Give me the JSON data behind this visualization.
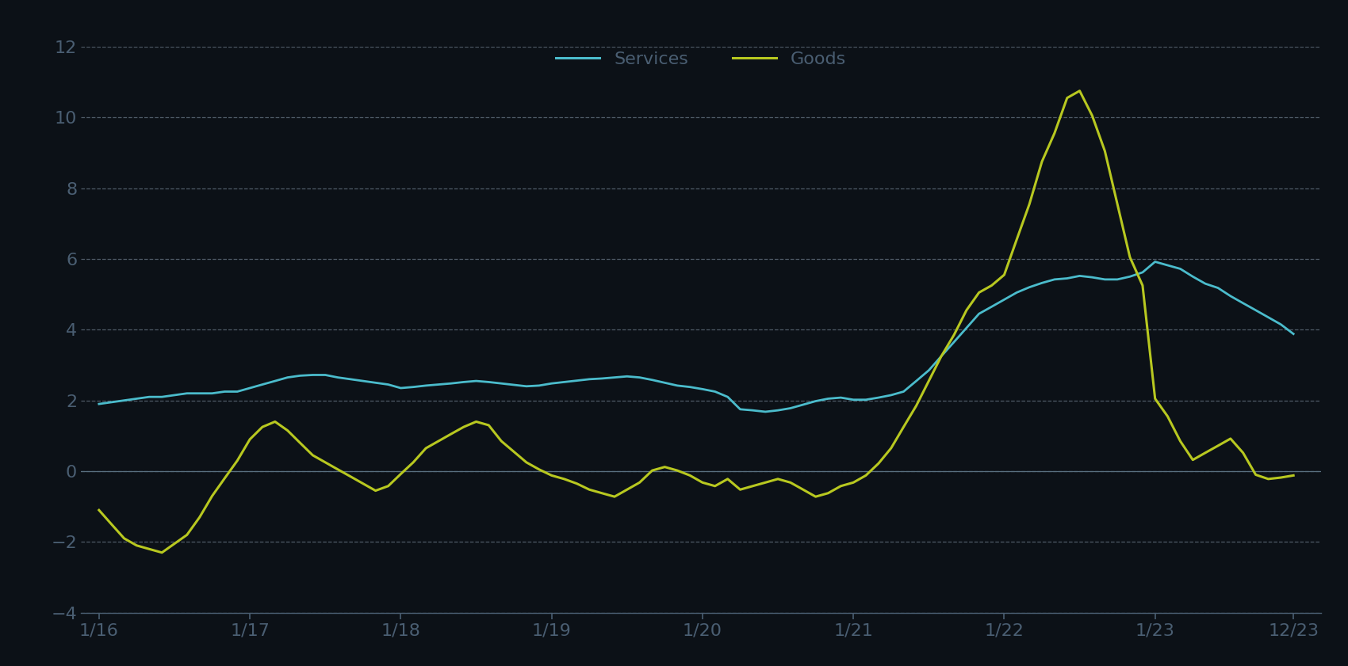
{
  "background_color": "#0c1117",
  "plot_bg_color": "#0c1117",
  "text_color": "#4a5e72",
  "grid_color": "#8899aa",
  "zero_line_color": "#5a7080",
  "services_color": "#4bbccc",
  "goods_color": "#b8c820",
  "ylim": [
    -4,
    12
  ],
  "yticks": [
    -4,
    -2,
    0,
    2,
    4,
    6,
    8,
    10,
    12
  ],
  "xtick_labels": [
    "1/16",
    "1/17",
    "1/18",
    "1/19",
    "1/20",
    "1/21",
    "1/22",
    "1/23",
    "12/23"
  ],
  "xtick_positions": [
    2016.0,
    2017.0,
    2018.0,
    2019.0,
    2020.0,
    2021.0,
    2022.0,
    2023.0,
    2023.917
  ],
  "legend_labels": [
    "Services",
    "Goods"
  ],
  "services_x": [
    2016.0,
    2016.083,
    2016.167,
    2016.25,
    2016.333,
    2016.417,
    2016.5,
    2016.583,
    2016.667,
    2016.75,
    2016.833,
    2016.917,
    2017.0,
    2017.083,
    2017.167,
    2017.25,
    2017.333,
    2017.417,
    2017.5,
    2017.583,
    2017.667,
    2017.75,
    2017.833,
    2017.917,
    2018.0,
    2018.083,
    2018.167,
    2018.25,
    2018.333,
    2018.417,
    2018.5,
    2018.583,
    2018.667,
    2018.75,
    2018.833,
    2018.917,
    2019.0,
    2019.083,
    2019.167,
    2019.25,
    2019.333,
    2019.417,
    2019.5,
    2019.583,
    2019.667,
    2019.75,
    2019.833,
    2019.917,
    2020.0,
    2020.083,
    2020.167,
    2020.25,
    2020.333,
    2020.417,
    2020.5,
    2020.583,
    2020.667,
    2020.75,
    2020.833,
    2020.917,
    2021.0,
    2021.083,
    2021.167,
    2021.25,
    2021.333,
    2021.417,
    2021.5,
    2021.583,
    2021.667,
    2021.75,
    2021.833,
    2021.917,
    2022.0,
    2022.083,
    2022.167,
    2022.25,
    2022.333,
    2022.417,
    2022.5,
    2022.583,
    2022.667,
    2022.75,
    2022.833,
    2022.917,
    2023.0,
    2023.083,
    2023.167,
    2023.25,
    2023.333,
    2023.417,
    2023.5,
    2023.583,
    2023.667,
    2023.75,
    2023.833,
    2023.917
  ],
  "services_y": [
    1.9,
    1.95,
    2.0,
    2.05,
    2.1,
    2.1,
    2.15,
    2.2,
    2.2,
    2.2,
    2.25,
    2.25,
    2.35,
    2.45,
    2.55,
    2.65,
    2.7,
    2.72,
    2.72,
    2.65,
    2.6,
    2.55,
    2.5,
    2.45,
    2.35,
    2.38,
    2.42,
    2.45,
    2.48,
    2.52,
    2.55,
    2.52,
    2.48,
    2.44,
    2.4,
    2.42,
    2.48,
    2.52,
    2.56,
    2.6,
    2.62,
    2.65,
    2.68,
    2.65,
    2.58,
    2.5,
    2.42,
    2.38,
    2.32,
    2.25,
    2.1,
    1.75,
    1.72,
    1.68,
    1.72,
    1.78,
    1.88,
    1.98,
    2.05,
    2.08,
    2.02,
    2.02,
    2.08,
    2.15,
    2.25,
    2.55,
    2.85,
    3.25,
    3.65,
    4.05,
    4.45,
    4.65,
    4.85,
    5.05,
    5.2,
    5.32,
    5.42,
    5.45,
    5.52,
    5.48,
    5.42,
    5.42,
    5.5,
    5.62,
    5.92,
    5.82,
    5.72,
    5.5,
    5.3,
    5.18,
    4.95,
    4.75,
    4.55,
    4.35,
    4.15,
    3.88
  ],
  "goods_x": [
    2016.0,
    2016.083,
    2016.167,
    2016.25,
    2016.333,
    2016.417,
    2016.5,
    2016.583,
    2016.667,
    2016.75,
    2016.833,
    2016.917,
    2017.0,
    2017.083,
    2017.167,
    2017.25,
    2017.333,
    2017.417,
    2017.5,
    2017.583,
    2017.667,
    2017.75,
    2017.833,
    2017.917,
    2018.0,
    2018.083,
    2018.167,
    2018.25,
    2018.333,
    2018.417,
    2018.5,
    2018.583,
    2018.667,
    2018.75,
    2018.833,
    2018.917,
    2019.0,
    2019.083,
    2019.167,
    2019.25,
    2019.333,
    2019.417,
    2019.5,
    2019.583,
    2019.667,
    2019.75,
    2019.833,
    2019.917,
    2020.0,
    2020.083,
    2020.167,
    2020.25,
    2020.333,
    2020.417,
    2020.5,
    2020.583,
    2020.667,
    2020.75,
    2020.833,
    2020.917,
    2021.0,
    2021.083,
    2021.167,
    2021.25,
    2021.333,
    2021.417,
    2021.5,
    2021.583,
    2021.667,
    2021.75,
    2021.833,
    2021.917,
    2022.0,
    2022.083,
    2022.167,
    2022.25,
    2022.333,
    2022.417,
    2022.5,
    2022.583,
    2022.667,
    2022.75,
    2022.833,
    2022.917,
    2023.0,
    2023.083,
    2023.167,
    2023.25,
    2023.333,
    2023.417,
    2023.5,
    2023.583,
    2023.667,
    2023.75,
    2023.833,
    2023.917
  ],
  "goods_y": [
    -1.1,
    -1.5,
    -1.9,
    -2.1,
    -2.2,
    -2.3,
    -2.05,
    -1.8,
    -1.3,
    -0.7,
    -0.2,
    0.3,
    0.9,
    1.25,
    1.4,
    1.15,
    0.8,
    0.45,
    0.25,
    0.05,
    -0.15,
    -0.35,
    -0.55,
    -0.42,
    -0.08,
    0.25,
    0.65,
    0.85,
    1.05,
    1.25,
    1.4,
    1.3,
    0.85,
    0.55,
    0.25,
    0.05,
    -0.12,
    -0.22,
    -0.35,
    -0.52,
    -0.62,
    -0.72,
    -0.52,
    -0.32,
    0.02,
    0.12,
    0.02,
    -0.12,
    -0.32,
    -0.42,
    -0.22,
    -0.52,
    -0.42,
    -0.32,
    -0.22,
    -0.32,
    -0.52,
    -0.72,
    -0.62,
    -0.42,
    -0.32,
    -0.12,
    0.22,
    0.65,
    1.25,
    1.85,
    2.55,
    3.25,
    3.85,
    4.55,
    5.05,
    5.25,
    5.55,
    6.55,
    7.55,
    8.75,
    9.55,
    10.55,
    10.75,
    10.05,
    9.05,
    7.55,
    6.05,
    5.25,
    2.05,
    1.55,
    0.85,
    0.32,
    0.52,
    0.72,
    0.92,
    0.52,
    -0.1,
    -0.22,
    -0.18,
    -0.12
  ]
}
